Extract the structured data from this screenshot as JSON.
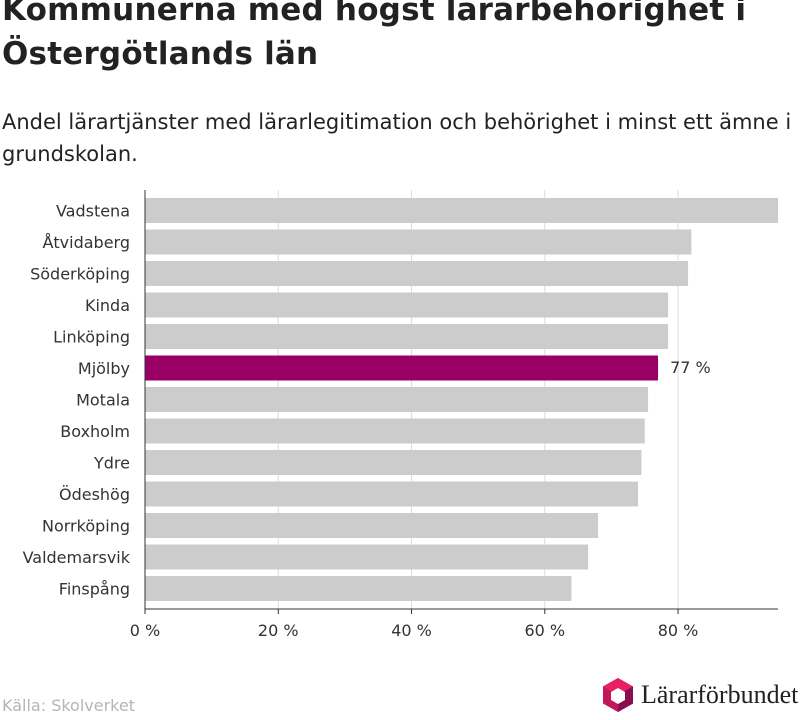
{
  "header": {
    "title": "Kommunerna med högst lärarbehörighet i Östergötlands län",
    "subtitle": "Andel lärartjänster med lärarlegitimation och behörighet i minst ett ämne i grundskolan."
  },
  "footer": {
    "source": "Källa: Skolverket",
    "logo_text": "Lärarförbundet"
  },
  "colors": {
    "bar": "#cccccc",
    "highlight": "#990066",
    "grid": "#dcdcdc",
    "axis": "#333333"
  },
  "chart_data": {
    "type": "bar",
    "orientation": "horizontal",
    "categories": [
      "Vadstena",
      "Åtvidaberg",
      "Söderköping",
      "Kinda",
      "Linköping",
      "Mjölby",
      "Motala",
      "Boxholm",
      "Ydre",
      "Ödeshög",
      "Norrköping",
      "Valdemarsvik",
      "Finspång"
    ],
    "values": [
      95,
      82,
      81.5,
      78.5,
      78.5,
      77,
      75.5,
      75,
      74.5,
      74,
      68,
      66.5,
      64
    ],
    "highlight": "Mjölby",
    "highlight_label": "77 %",
    "xlim": [
      0,
      95
    ],
    "xticks": [
      0,
      20,
      40,
      60,
      80
    ],
    "xtick_labels": [
      "0 %",
      "20 %",
      "40 %",
      "60 %",
      "80 %"
    ],
    "grid": true
  }
}
